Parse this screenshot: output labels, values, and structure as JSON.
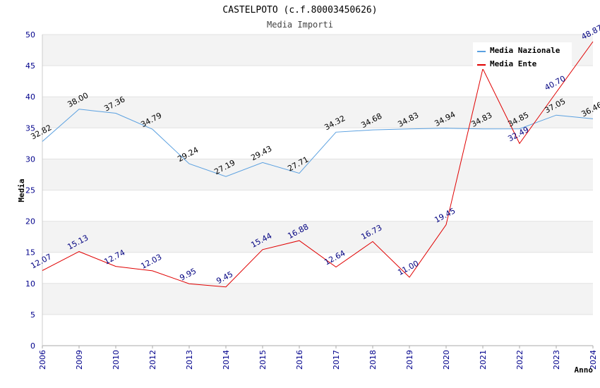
{
  "chart_data": {
    "type": "line",
    "title": "CASTELPOTO (c.f.80003450626)",
    "subtitle": "Media Importi",
    "xlabel": "Anno",
    "ylabel": "Media",
    "categories": [
      "2006",
      "2009",
      "2010",
      "2012",
      "2013",
      "2014",
      "2015",
      "2016",
      "2017",
      "2018",
      "2019",
      "2020",
      "2021",
      "2022",
      "2023",
      "2024"
    ],
    "ylim": [
      0,
      50
    ],
    "yticks": [
      "0",
      "5",
      "10",
      "15",
      "20",
      "25",
      "30",
      "35",
      "40",
      "45",
      "50"
    ],
    "grid": true,
    "legend_position": "top-right",
    "series": [
      {
        "name": "Media Nazionale",
        "color": "#5aa0e0",
        "values": [
          32.82,
          38.0,
          37.36,
          34.79,
          29.24,
          27.19,
          29.43,
          27.71,
          34.32,
          34.68,
          34.83,
          34.94,
          34.83,
          34.85,
          37.05,
          36.46
        ],
        "labels": [
          "32.82",
          "38.00",
          "37.36",
          "34.79",
          "29.24",
          "27.19",
          "29.43",
          "27.71",
          "34.32",
          "34.68",
          "34.83",
          "34.94",
          "34.83",
          "34.85",
          "37.05",
          "36.46"
        ]
      },
      {
        "name": "Media Ente",
        "color": "#e00000",
        "values": [
          12.07,
          15.13,
          12.74,
          12.03,
          9.95,
          9.45,
          15.44,
          16.88,
          12.64,
          16.73,
          11.0,
          19.45,
          44.5,
          32.49,
          40.7,
          48.87
        ],
        "labels": [
          "12.07",
          "15.13",
          "12.74",
          "12.03",
          "9.95",
          "9.45",
          "15.44",
          "16.88",
          "12.64",
          "16.73",
          "11.00",
          "19.45",
          "",
          "32.49",
          "40.70",
          "48.87"
        ]
      }
    ]
  }
}
